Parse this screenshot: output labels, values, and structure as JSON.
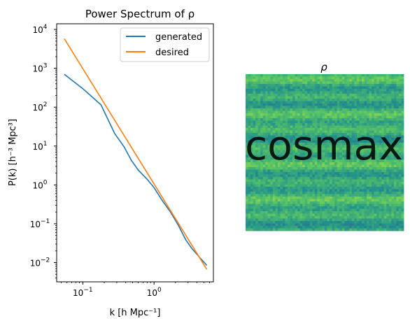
{
  "chart_data": [
    {
      "type": "line",
      "title": "Power Spectrum of ρ",
      "xlabel": "k [h Mpc⁻¹]",
      "ylabel": "P(k) [h⁻³ Mpc³]",
      "xscale": "log",
      "yscale": "log",
      "xlim": [
        0.043,
        6.8
      ],
      "ylim": [
        0.0032,
        14000
      ],
      "xticks": [
        {
          "value": 0.1,
          "base": "10",
          "exp": "−1"
        },
        {
          "value": 1,
          "base": "10",
          "exp": "0"
        }
      ],
      "yticks": [
        {
          "value": 0.01,
          "base": "10",
          "exp": "−2"
        },
        {
          "value": 0.1,
          "base": "10",
          "exp": "−1"
        },
        {
          "value": 1,
          "base": "10",
          "exp": "0"
        },
        {
          "value": 10,
          "base": "10",
          "exp": "1"
        },
        {
          "value": 100,
          "base": "10",
          "exp": "2"
        },
        {
          "value": 1000,
          "base": "10",
          "exp": "3"
        },
        {
          "value": 10000,
          "base": "10",
          "exp": "4"
        }
      ],
      "grid": false,
      "legend_position": "top-right",
      "series": [
        {
          "name": "generated",
          "color": "#1f77b4",
          "x": [
            0.055,
            0.1,
            0.18,
            0.28,
            0.38,
            0.48,
            0.6,
            0.8,
            1.0,
            1.3,
            1.7,
            2.2,
            2.8,
            3.4,
            4.3,
            5.5
          ],
          "y": [
            700,
            300,
            115,
            21,
            9.5,
            4.3,
            2.4,
            1.4,
            0.85,
            0.4,
            0.2,
            0.09,
            0.038,
            0.023,
            0.014,
            0.0085
          ]
        },
        {
          "name": "desired",
          "color": "#ff7f0e",
          "x": [
            0.055,
            5.5
          ],
          "y": [
            5800,
            0.0067
          ]
        }
      ]
    },
    {
      "type": "heatmap",
      "title": "ρ",
      "colormap": "viridis",
      "overlay_text": "cosmax"
    }
  ]
}
